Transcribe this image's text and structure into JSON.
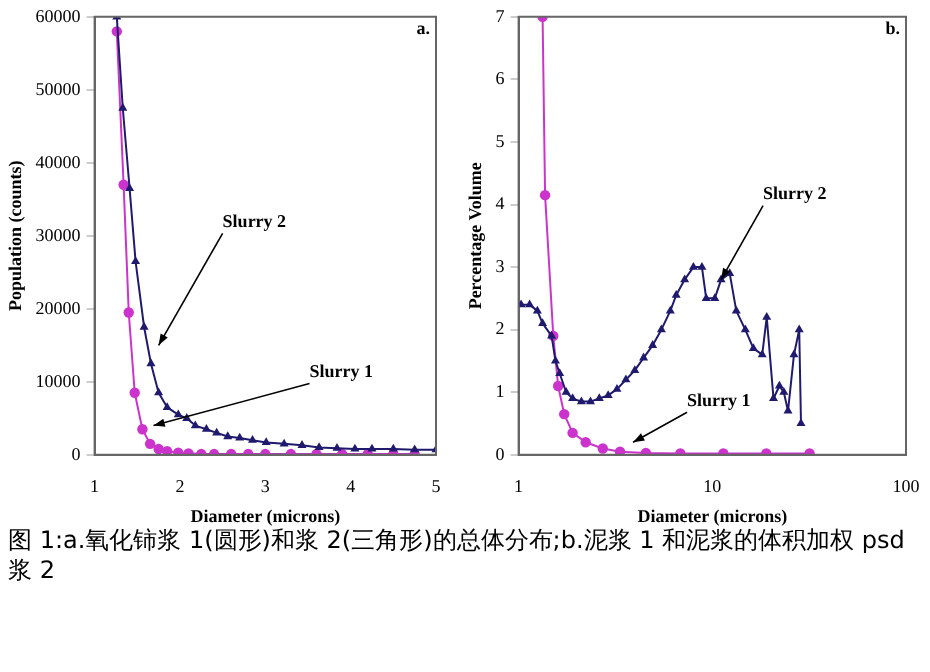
{
  "chart_data": [
    {
      "type": "line",
      "xlabel": "Diameter (microns)",
      "ylabel": "Population (counts)",
      "xlim": [
        1,
        5
      ],
      "xticks": [
        1,
        2,
        3,
        4,
        5
      ],
      "ylim": [
        0,
        60000
      ],
      "yticks": [
        0,
        10000,
        20000,
        30000,
        40000,
        50000,
        60000
      ],
      "grid": false,
      "legend": false,
      "line_style": "solid",
      "series": [
        {
          "color": "#cc33cc",
          "marker": "circle",
          "x": [
            1.26,
            1.34,
            1.4,
            1.47,
            1.56,
            1.65,
            1.75,
            1.85,
            1.98,
            2.1,
            2.25,
            2.4,
            2.6,
            2.8,
            3.0,
            3.3,
            3.6,
            3.9,
            4.2,
            4.5,
            4.75
          ],
          "values": [
            58000,
            37000,
            19500,
            8500,
            3500,
            1500,
            800,
            500,
            300,
            200,
            100,
            100,
            100,
            100,
            100,
            100,
            100,
            100,
            100,
            100,
            100
          ]
        },
        {
          "color": "#1f1a6e",
          "marker": "triangle",
          "x": [
            1.26,
            1.33,
            1.41,
            1.48,
            1.58,
            1.66,
            1.75,
            1.85,
            1.98,
            2.08,
            2.18,
            2.31,
            2.43,
            2.56,
            2.7,
            2.85,
            3.01,
            3.22,
            3.43,
            3.63,
            3.84,
            4.05,
            4.25,
            4.5,
            4.75,
            5.0
          ],
          "values": [
            60000,
            47500,
            36500,
            26500,
            17500,
            12500,
            8500,
            6500,
            5500,
            5000,
            4000,
            3500,
            3000,
            2500,
            2300,
            2000,
            1700,
            1500,
            1300,
            1000,
            900,
            800,
            800,
            800,
            700,
            700
          ]
        }
      ],
      "annotations": [
        "a.",
        {
          "text": "Slurry 2",
          "x": 1.75,
          "y": 15000
        },
        {
          "text": "Slurry 1",
          "x": 1.69,
          "y": 4000
        },
        "图 1:a.氧化铈浆 1(圆形)和浆 2(三角形)的总体分布;b.泥浆 1 和泥浆的体积加权 psd",
        "浆 2"
      ]
    },
    {
      "type": "line",
      "xlabel": "Diameter (microns)",
      "ylabel": "Percentage Volume",
      "log": "x",
      "xlim": [
        1,
        100
      ],
      "xticks": [
        1,
        10,
        100
      ],
      "ylim": [
        0,
        7
      ],
      "yticks": [
        0,
        1,
        2,
        3,
        4,
        5,
        6,
        7
      ],
      "grid": false,
      "legend": false,
      "line_style": "solid",
      "series": [
        {
          "color": "#cc33cc",
          "marker": "circle",
          "x": [
            1.33,
            1.37,
            1.51,
            1.6,
            1.72,
            1.9,
            2.22,
            2.72,
            3.34,
            4.54,
            6.84,
            11.4,
            19.0,
            31.8
          ],
          "values": [
            7,
            4.15,
            1.9,
            1.1,
            0.65,
            0.35,
            0.2,
            0.1,
            0.05,
            0.03,
            0.02,
            0.02,
            0.02,
            0.02
          ]
        },
        {
          "color": "#1f1a6e",
          "marker": "triangle",
          "x": [
            1.03,
            1.14,
            1.25,
            1.33,
            1.48,
            1.55,
            1.63,
            1.76,
            1.9,
            2.11,
            2.35,
            2.61,
            2.9,
            3.22,
            3.58,
            3.98,
            4.42,
            4.92,
            5.46,
            6.07,
            6.51,
            7.2,
            7.99,
            8.84,
            9.3,
            10.3,
            11.1,
            12.3,
            13.3,
            14.8,
            16.3,
            18.1,
            19.1,
            20.7,
            22.2,
            23.4,
            24.6,
            26.4,
            28.1,
            28.7
          ],
          "values": [
            2.4,
            2.4,
            2.3,
            2.1,
            1.9,
            1.5,
            1.3,
            1.0,
            0.9,
            0.85,
            0.85,
            0.9,
            0.95,
            1.05,
            1.2,
            1.35,
            1.55,
            1.75,
            2.0,
            2.3,
            2.55,
            2.8,
            3.0,
            3.0,
            2.5,
            2.5,
            2.8,
            2.9,
            2.3,
            2.0,
            1.7,
            1.6,
            2.2,
            0.9,
            1.1,
            1.0,
            0.7,
            1.6,
            2.0,
            0.5
          ]
        }
      ],
      "annotations": [
        "b.",
        {
          "text": "Slurry 2",
          "x": 11.1,
          "y": 2.8
        },
        {
          "text": "Slurry 1",
          "x": 3.9,
          "y": 0.2
        }
      ]
    }
  ]
}
